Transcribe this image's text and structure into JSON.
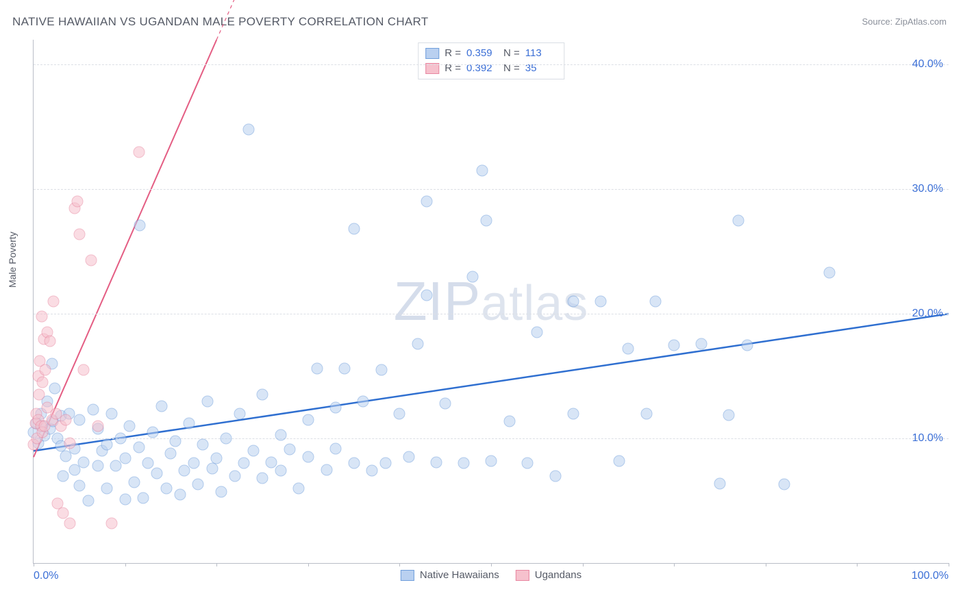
{
  "title": "NATIVE HAWAIIAN VS UGANDAN MALE POVERTY CORRELATION CHART",
  "source": "Source: ZipAtlas.com",
  "watermark_big": "ZIP",
  "watermark_rest": "atlas",
  "ylabel": "Male Poverty",
  "chart": {
    "type": "scatter",
    "background_color": "#ffffff",
    "grid_color": "#dcdfe5",
    "axis_color": "#b9bdc7",
    "text_color": "#555a66",
    "value_color": "#3b6fd6",
    "xlim": [
      0,
      100
    ],
    "ylim": [
      0,
      42
    ],
    "x_ticks": [
      0,
      10,
      20,
      30,
      40,
      50,
      60,
      70,
      80,
      90,
      100
    ],
    "x_tick_labels": {
      "0": "0.0%",
      "100": "100.0%"
    },
    "y_gridlines": [
      10,
      20,
      30,
      40
    ],
    "y_tick_labels": {
      "10": "10.0%",
      "20": "20.0%",
      "30": "30.0%",
      "40": "40.0%"
    },
    "marker_radius": 8.5,
    "marker_stroke_width": 1.2,
    "series": [
      {
        "name": "Native Hawaiians",
        "fill": "#b9d0f0",
        "stroke": "#6f9edb",
        "fill_opacity": 0.55,
        "R": "0.359",
        "N": "113",
        "trend": {
          "x1": 0,
          "y1": 9.0,
          "x2": 100,
          "y2": 20.0,
          "color": "#2f6fd0",
          "width": 2.5,
          "dash_extend": false
        },
        "points": [
          [
            0,
            10.5
          ],
          [
            0.3,
            11.2
          ],
          [
            0.5,
            9.6
          ],
          [
            0.8,
            12.0
          ],
          [
            1,
            11.0
          ],
          [
            1.2,
            10.2
          ],
          [
            1.5,
            13.0
          ],
          [
            1.8,
            10.8
          ],
          [
            2,
            16.0
          ],
          [
            2.1,
            11.4
          ],
          [
            2.3,
            14.0
          ],
          [
            2.6,
            10.0
          ],
          [
            3,
            9.4
          ],
          [
            3,
            11.8
          ],
          [
            3.2,
            7.0
          ],
          [
            3.5,
            8.6
          ],
          [
            3.9,
            12.0
          ],
          [
            4.5,
            9.2
          ],
          [
            4.5,
            7.5
          ],
          [
            5,
            11.5
          ],
          [
            5,
            6.2
          ],
          [
            5.5,
            8.1
          ],
          [
            6,
            5.0
          ],
          [
            6.5,
            12.3
          ],
          [
            7,
            10.8
          ],
          [
            7,
            7.8
          ],
          [
            7.5,
            9.0
          ],
          [
            8,
            6.0
          ],
          [
            8,
            9.5
          ],
          [
            8.5,
            12.0
          ],
          [
            9,
            7.8
          ],
          [
            9.5,
            10.0
          ],
          [
            10,
            5.1
          ],
          [
            10,
            8.4
          ],
          [
            10.5,
            11.0
          ],
          [
            11,
            6.5
          ],
          [
            11.5,
            9.3
          ],
          [
            11.6,
            27.1
          ],
          [
            12,
            5.2
          ],
          [
            12.5,
            8.0
          ],
          [
            13,
            10.5
          ],
          [
            13.5,
            7.2
          ],
          [
            14,
            12.6
          ],
          [
            14.5,
            6.0
          ],
          [
            15,
            8.8
          ],
          [
            15.5,
            9.8
          ],
          [
            16,
            5.5
          ],
          [
            16.5,
            7.4
          ],
          [
            17,
            11.2
          ],
          [
            17.5,
            8.0
          ],
          [
            18,
            6.3
          ],
          [
            18.5,
            9.5
          ],
          [
            19,
            13.0
          ],
          [
            19.5,
            7.6
          ],
          [
            20,
            8.4
          ],
          [
            20.5,
            5.7
          ],
          [
            21,
            10.0
          ],
          [
            22,
            7.0
          ],
          [
            22.5,
            12.0
          ],
          [
            23,
            8.0
          ],
          [
            23.5,
            34.8
          ],
          [
            24,
            9.0
          ],
          [
            25,
            6.8
          ],
          [
            25,
            13.5
          ],
          [
            26,
            8.1
          ],
          [
            27,
            10.3
          ],
          [
            27,
            7.4
          ],
          [
            28,
            9.1
          ],
          [
            29,
            6.0
          ],
          [
            30,
            8.5
          ],
          [
            30,
            11.5
          ],
          [
            31,
            15.6
          ],
          [
            32,
            7.5
          ],
          [
            33,
            12.5
          ],
          [
            33,
            9.2
          ],
          [
            34,
            15.6
          ],
          [
            35,
            8.0
          ],
          [
            35,
            26.8
          ],
          [
            36,
            13.0
          ],
          [
            37,
            7.4
          ],
          [
            38,
            15.5
          ],
          [
            38.5,
            8.0
          ],
          [
            40,
            12.0
          ],
          [
            41,
            8.5
          ],
          [
            42,
            17.6
          ],
          [
            43,
            29.0
          ],
          [
            43,
            21.5
          ],
          [
            44,
            8.1
          ],
          [
            45,
            12.8
          ],
          [
            47,
            8.0
          ],
          [
            48,
            23.0
          ],
          [
            49,
            31.5
          ],
          [
            49.5,
            27.5
          ],
          [
            50,
            8.2
          ],
          [
            52,
            11.4
          ],
          [
            54,
            8.0
          ],
          [
            55,
            18.5
          ],
          [
            57,
            7.0
          ],
          [
            59,
            12.0
          ],
          [
            59,
            21.0
          ],
          [
            62,
            21.0
          ],
          [
            64,
            8.2
          ],
          [
            65,
            17.2
          ],
          [
            67,
            12.0
          ],
          [
            68,
            21.0
          ],
          [
            70,
            17.5
          ],
          [
            73,
            17.6
          ],
          [
            75,
            6.4
          ],
          [
            76,
            11.9
          ],
          [
            77,
            27.5
          ],
          [
            78,
            17.5
          ],
          [
            82,
            6.3
          ],
          [
            87,
            23.3
          ]
        ]
      },
      {
        "name": "Ugandans",
        "fill": "#f6c1cd",
        "stroke": "#e886a0",
        "fill_opacity": 0.55,
        "R": "0.392",
        "N": "35",
        "trend": {
          "x1": 0,
          "y1": 8.5,
          "x2": 20,
          "y2": 42.0,
          "color": "#e45d83",
          "width": 2.0,
          "dash_extend": true,
          "x2_dash": 27,
          "y2_dash": 53.7
        },
        "points": [
          [
            0,
            9.5
          ],
          [
            0.2,
            11.2
          ],
          [
            0.3,
            12.0
          ],
          [
            0.4,
            10.0
          ],
          [
            0.5,
            15.0
          ],
          [
            0.5,
            11.5
          ],
          [
            0.6,
            13.5
          ],
          [
            0.7,
            16.2
          ],
          [
            0.8,
            11.0
          ],
          [
            0.9,
            19.8
          ],
          [
            1.0,
            10.5
          ],
          [
            1.0,
            14.5
          ],
          [
            1.1,
            18.0
          ],
          [
            1.2,
            11.0
          ],
          [
            1.3,
            15.5
          ],
          [
            1.5,
            12.5
          ],
          [
            1.5,
            18.5
          ],
          [
            1.8,
            17.8
          ],
          [
            2.0,
            11.5
          ],
          [
            2.2,
            21.0
          ],
          [
            2.5,
            12.0
          ],
          [
            2.6,
            4.8
          ],
          [
            3.0,
            11.0
          ],
          [
            3.2,
            4.0
          ],
          [
            3.5,
            11.5
          ],
          [
            4.0,
            3.2
          ],
          [
            4.0,
            9.6
          ],
          [
            4.5,
            28.5
          ],
          [
            4.8,
            29.0
          ],
          [
            5.0,
            26.4
          ],
          [
            5.5,
            15.5
          ],
          [
            6.3,
            24.3
          ],
          [
            7.0,
            11.0
          ],
          [
            8.5,
            3.2
          ],
          [
            11.5,
            33.0
          ]
        ]
      }
    ],
    "legend_series": [
      {
        "label": "Native Hawaiians",
        "fill": "#b9d0f0",
        "stroke": "#6f9edb"
      },
      {
        "label": "Ugandans",
        "fill": "#f6c1cd",
        "stroke": "#e886a0"
      }
    ]
  }
}
